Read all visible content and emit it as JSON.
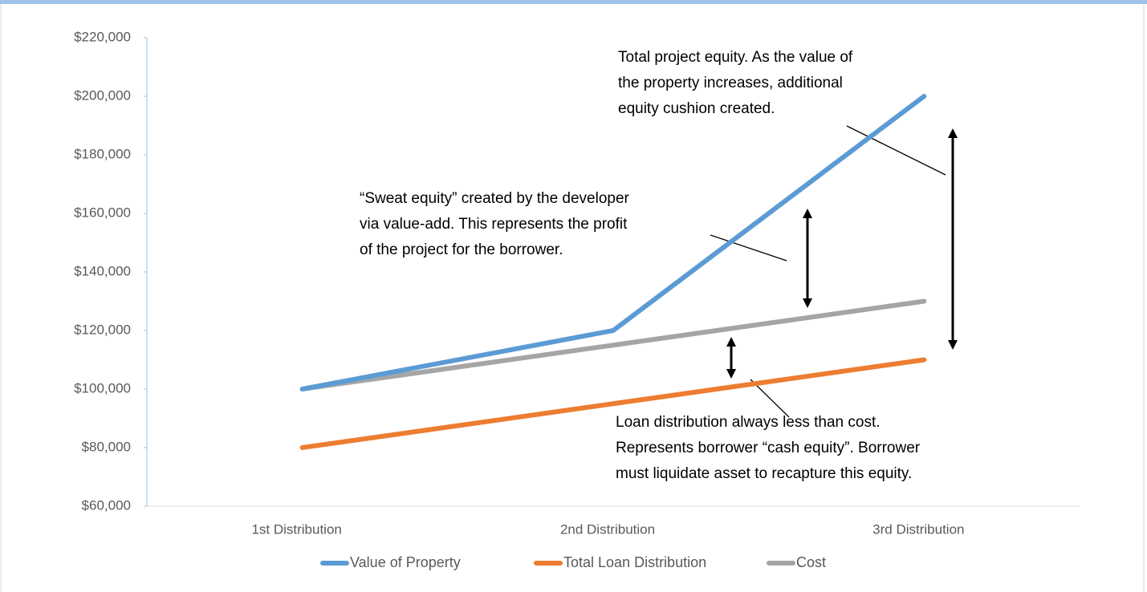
{
  "chart_data": {
    "type": "line",
    "categories": [
      "1st Distribution",
      "2nd Distribution",
      "3rd Distribution"
    ],
    "series": [
      {
        "name": "Value of Property",
        "color": "#5b9bd5",
        "values": [
          100000,
          120000,
          200000
        ]
      },
      {
        "name": "Total Loan Distribution",
        "color": "#ed7d31",
        "values": [
          80000,
          95000,
          110000
        ]
      },
      {
        "name": "Cost",
        "color": "#a5a5a5",
        "values": [
          100000,
          115000,
          130000
        ]
      }
    ],
    "ylim": [
      60000,
      220000
    ],
    "yticks": [
      {
        "value": 60000,
        "label": "$60,000"
      },
      {
        "value": 80000,
        "label": "$80,000"
      },
      {
        "value": 100000,
        "label": "$100,000"
      },
      {
        "value": 120000,
        "label": "$120,000"
      },
      {
        "value": 140000,
        "label": "$140,000"
      },
      {
        "value": 160000,
        "label": "$160,000"
      },
      {
        "value": 180000,
        "label": "$180,000"
      },
      {
        "value": 200000,
        "label": "$200,000"
      },
      {
        "value": 220000,
        "label": "$220,000"
      }
    ],
    "grid": false,
    "legend": "bottom",
    "annotations": [
      [
        "Total project equity. As the value of",
        "the property increases, additional",
        "equity cushion created."
      ],
      [
        "“Sweat equity” created by the developer",
        "via value-add. This represents the profit",
        "of the project for the borrower."
      ],
      [
        "Loan distribution always less than cost.",
        "Represents borrower “cash equity”. Borrower",
        "must liquidate asset to recapture this equity."
      ]
    ]
  }
}
